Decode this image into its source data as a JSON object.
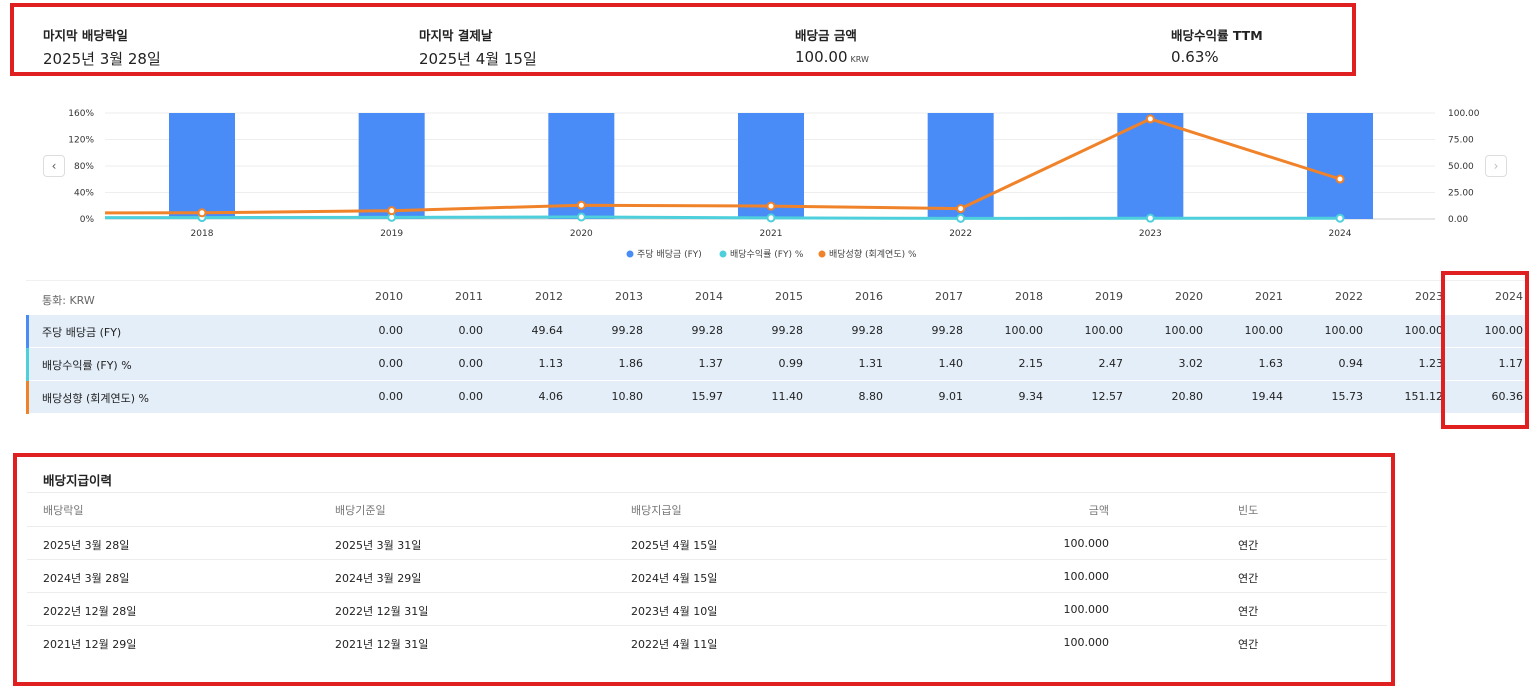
{
  "summary": {
    "items": [
      {
        "label": "마지막 배당락일",
        "value": "2025년 3월 28일",
        "unit": ""
      },
      {
        "label": "마지막 결제날",
        "value": "2025년 4월 15일",
        "unit": ""
      },
      {
        "label": "배당금 금액",
        "value": "100.00",
        "unit": "KRW"
      },
      {
        "label": "배당수익률 TTM",
        "value": "0.63%",
        "unit": ""
      }
    ]
  },
  "chart_data": {
    "type": "bar",
    "categories": [
      "2018",
      "2019",
      "2020",
      "2021",
      "2022",
      "2023",
      "2024"
    ],
    "series": [
      {
        "name": "주당 배당금 (FY)",
        "type": "bar",
        "axis": "right",
        "color": "#4a8cf7",
        "values": [
          100.0,
          100.0,
          100.0,
          100.0,
          100.0,
          100.0,
          100.0
        ]
      },
      {
        "name": "배당수익률 (FY) %",
        "type": "line",
        "axis": "left",
        "color": "#4dd0dc",
        "values": [
          2.15,
          2.47,
          3.02,
          1.63,
          0.94,
          1.23,
          1.17
        ]
      },
      {
        "name": "배당성향 (회계연도) %",
        "type": "line",
        "axis": "left",
        "color": "#f0832a",
        "values": [
          9.34,
          12.57,
          20.8,
          19.44,
          15.73,
          151.12,
          60.36
        ]
      }
    ],
    "left_axis": {
      "ticks": [
        "0%",
        "40%",
        "80%",
        "120%",
        "160%"
      ],
      "ylim": [
        0,
        160
      ]
    },
    "right_axis": {
      "ticks": [
        "0.00",
        "25.00",
        "50.00",
        "75.00",
        "100.00"
      ],
      "ylim": [
        0,
        100
      ]
    },
    "legend_position": "bottom-center",
    "grid": true
  },
  "nav": {
    "prev_icon": "‹",
    "next_icon": "›"
  },
  "table": {
    "currency_label": "통화: KRW",
    "years": [
      "2010",
      "2011",
      "2012",
      "2013",
      "2014",
      "2015",
      "2016",
      "2017",
      "2018",
      "2019",
      "2020",
      "2021",
      "2022",
      "2023",
      "2024"
    ],
    "rows": [
      {
        "label": "주당 배당금 (FY)",
        "color": "#4a8cf7",
        "values": [
          "0.00",
          "0.00",
          "49.64",
          "99.28",
          "99.28",
          "99.28",
          "99.28",
          "99.28",
          "100.00",
          "100.00",
          "100.00",
          "100.00",
          "100.00",
          "100.00",
          "100.00"
        ]
      },
      {
        "label": "배당수익률 (FY) %",
        "color": "#4dd0dc",
        "values": [
          "0.00",
          "0.00",
          "1.13",
          "1.86",
          "1.37",
          "0.99",
          "1.31",
          "1.40",
          "2.15",
          "2.47",
          "3.02",
          "1.63",
          "0.94",
          "1.23",
          "1.17"
        ]
      },
      {
        "label": "배당성향 (회계연도) %",
        "color": "#f0832a",
        "values": [
          "0.00",
          "0.00",
          "4.06",
          "10.80",
          "15.97",
          "11.40",
          "8.80",
          "9.01",
          "9.34",
          "12.57",
          "20.80",
          "19.44",
          "15.73",
          "151.12",
          "60.36"
        ]
      }
    ]
  },
  "history": {
    "title": "배당지급이력",
    "headers": {
      "ex_date": "배당락일",
      "record_date": "배당기준일",
      "pay_date": "배당지급일",
      "amount": "금액",
      "frequency": "빈도"
    },
    "rows": [
      {
        "ex_date": "2025년 3월 28일",
        "record_date": "2025년 3월 31일",
        "pay_date": "2025년 4월 15일",
        "amount": "100.000",
        "frequency": "연간"
      },
      {
        "ex_date": "2024년 3월 28일",
        "record_date": "2024년 3월 29일",
        "pay_date": "2024년 4월 15일",
        "amount": "100.000",
        "frequency": "연간"
      },
      {
        "ex_date": "2022년 12월 28일",
        "record_date": "2022년 12월 31일",
        "pay_date": "2023년 4월 10일",
        "amount": "100.000",
        "frequency": "연간"
      },
      {
        "ex_date": "2021년 12월 29일",
        "record_date": "2021년 12월 31일",
        "pay_date": "2022년 4월 11일",
        "amount": "100.000",
        "frequency": "연간"
      }
    ]
  }
}
